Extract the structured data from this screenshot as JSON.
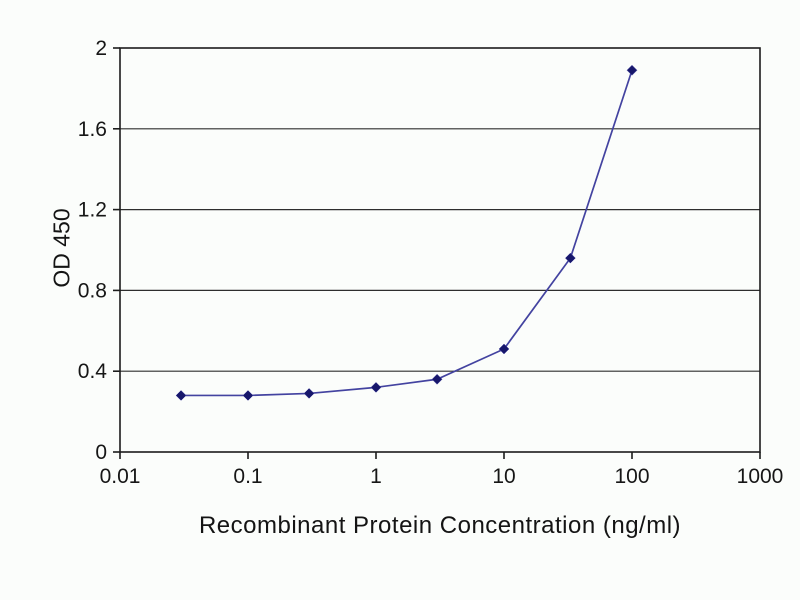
{
  "chart_data": {
    "type": "line",
    "title": "",
    "xlabel": "Recombinant Protein Concentration (ng/ml)",
    "ylabel": "OD 450",
    "x_scale": "log",
    "xlim": [
      0.01,
      1000
    ],
    "ylim": [
      0,
      2
    ],
    "x_tick_values": [
      0.01,
      0.1,
      1,
      10,
      100,
      1000
    ],
    "x_tick_labels": [
      "0.01",
      "0.1",
      "1",
      "10",
      "100",
      "1000"
    ],
    "y_tick_values": [
      0,
      0.4,
      0.8,
      1.2,
      1.6,
      2
    ],
    "y_tick_labels": [
      "0",
      "0.4",
      "0.8",
      "1.2",
      "1.6",
      "2"
    ],
    "grid": "horizontal-major",
    "legend": "none",
    "series": [
      {
        "name": "OD 450",
        "x": [
          0.03,
          0.1,
          0.3,
          1,
          3,
          10,
          33,
          100
        ],
        "y": [
          0.28,
          0.28,
          0.29,
          0.32,
          0.36,
          0.51,
          0.96,
          1.89
        ],
        "line_color": "#4343a0",
        "marker": "diamond",
        "marker_color": "#17176b"
      }
    ]
  },
  "colors": {
    "background": "#fbfdfb",
    "plot_border": "#1c1c1c",
    "gridline": "#2e2e2e",
    "tick": "#1c1c1c",
    "text": "#161616"
  }
}
